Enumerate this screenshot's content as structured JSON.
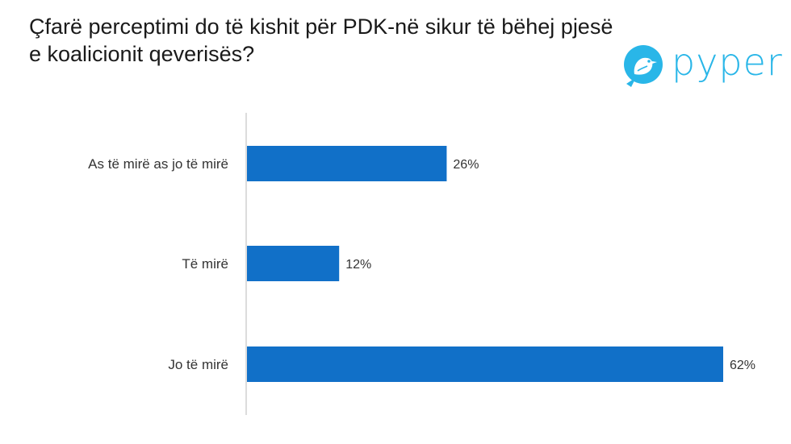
{
  "title": "Çfarë perceptimi do të kishit për PDK-në sikur të bëhej pjesë e koalicionit qeverisës?",
  "logo": {
    "text": "pyper",
    "icon": "bird-icon",
    "color": "#29b6e8"
  },
  "chart_data": {
    "type": "bar",
    "orientation": "horizontal",
    "categories": [
      "As të mirë as jo të mirë",
      "Të mirë",
      "Jo të mirë"
    ],
    "values": [
      26,
      12,
      62
    ],
    "value_labels": [
      "26%",
      "12%",
      "62%"
    ],
    "title": "Çfarë perceptimi do të kishit për PDK-në sikur të bëhej pjesë e koalicionit qeverisës?",
    "xlabel": "",
    "ylabel": "",
    "xlim": [
      0,
      62
    ],
    "bar_color": "#1170c8",
    "axis_color": "#d0d0d0",
    "grid": false,
    "legend": "none"
  }
}
